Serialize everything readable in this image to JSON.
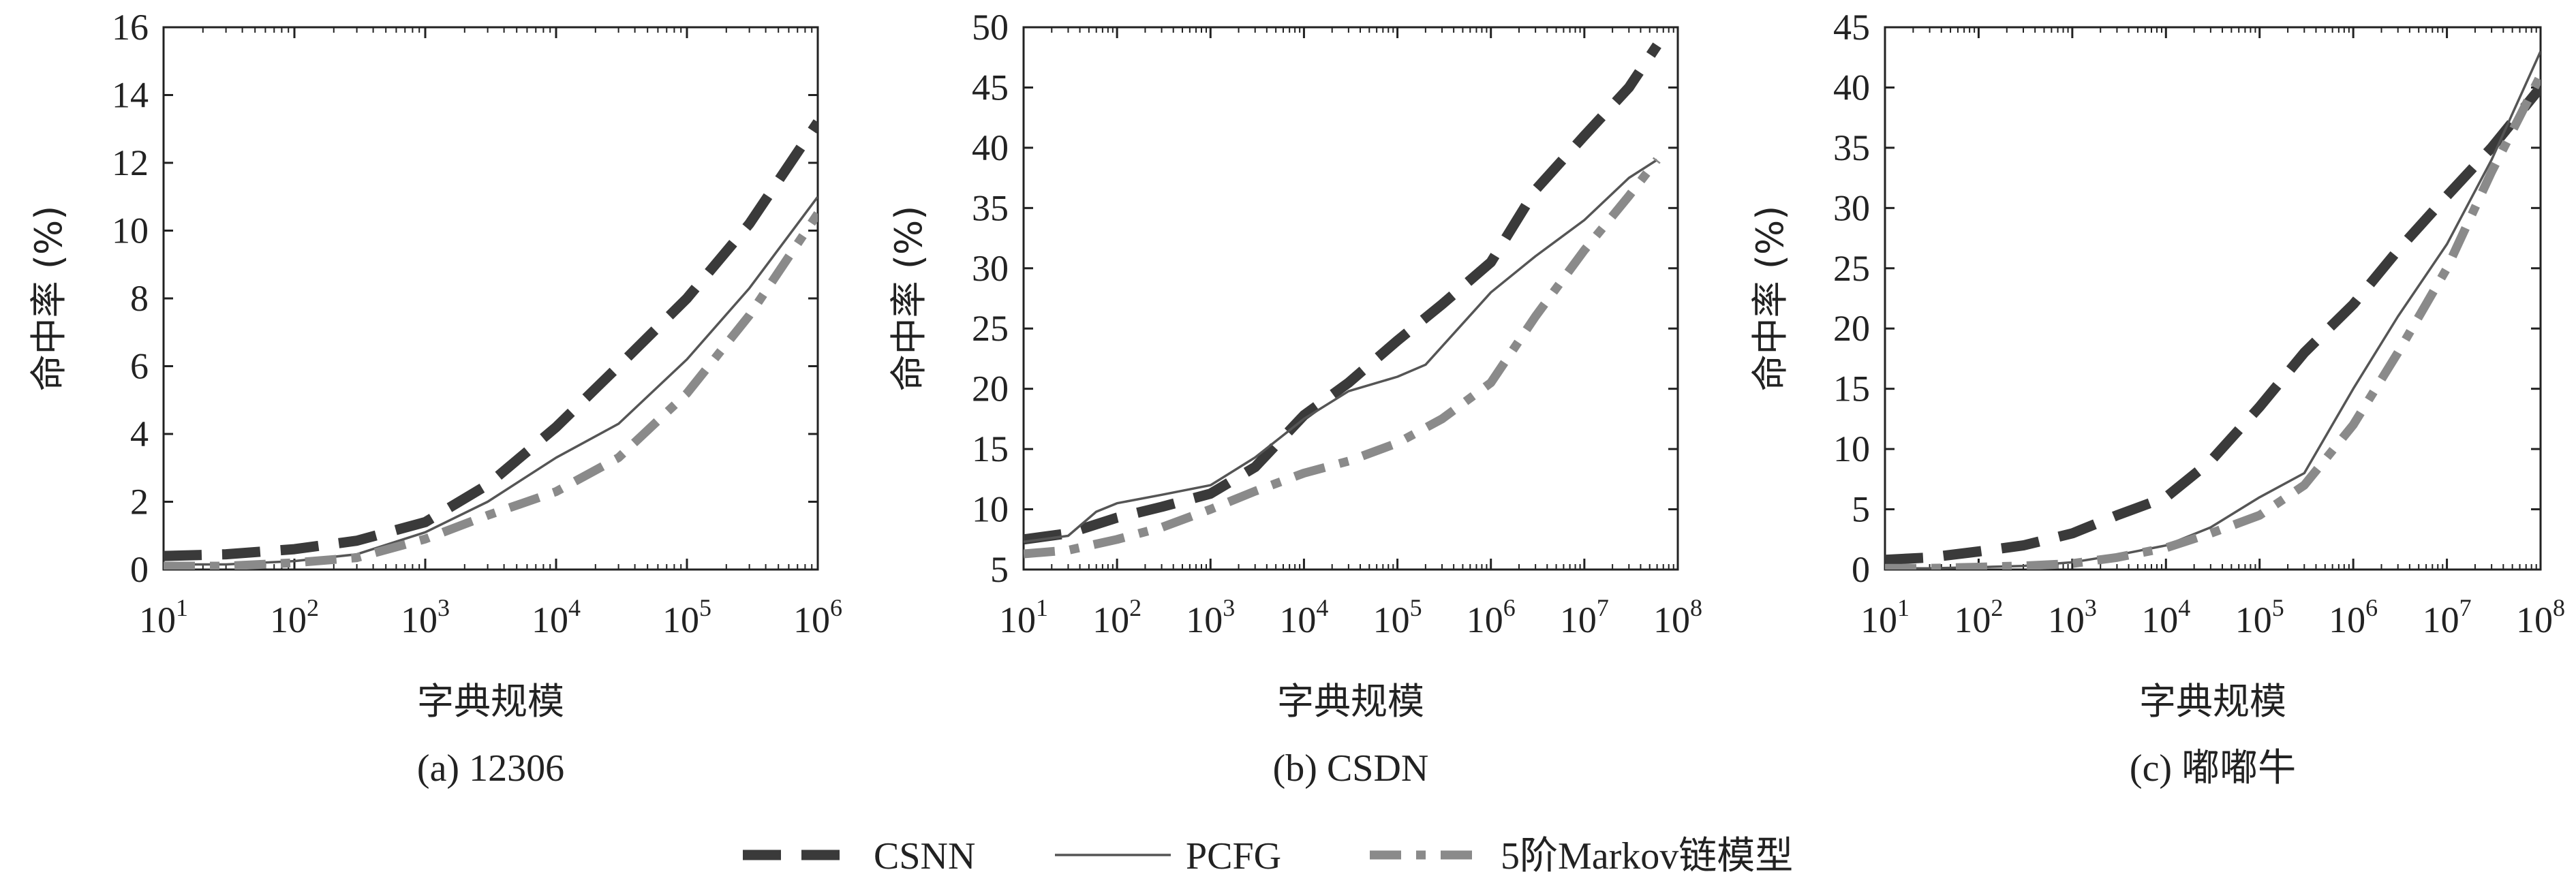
{
  "chart_data": [
    {
      "type": "line",
      "caption": "(a) 12306",
      "xlabel": "字典规模",
      "ylabel": "命中率 (%)",
      "xscale": "log",
      "xlim": [
        10,
        1000000
      ],
      "ylim": [
        0,
        16
      ],
      "xticks": [
        {
          "base": "10",
          "exp": "1"
        },
        {
          "base": "10",
          "exp": "2"
        },
        {
          "base": "10",
          "exp": "3"
        },
        {
          "base": "10",
          "exp": "4"
        },
        {
          "base": "10",
          "exp": "5"
        },
        {
          "base": "10",
          "exp": "6"
        }
      ],
      "yticks": [
        "0",
        "2",
        "4",
        "6",
        "8",
        "10",
        "12",
        "14",
        "16"
      ],
      "series": [
        {
          "name": "CSNN",
          "x": [
            10,
            30,
            100,
            300,
            1000,
            3000,
            10000,
            30000,
            100000,
            300000,
            1000000
          ],
          "y": [
            0.4,
            0.45,
            0.6,
            0.85,
            1.4,
            2.5,
            4.2,
            6.0,
            8.0,
            10.2,
            13.2
          ]
        },
        {
          "name": "PCFG",
          "x": [
            10,
            30,
            100,
            300,
            1000,
            3000,
            10000,
            30000,
            100000,
            300000,
            1000000
          ],
          "y": [
            0.15,
            0.15,
            0.25,
            0.45,
            1.1,
            2.0,
            3.3,
            4.3,
            6.2,
            8.3,
            11.0
          ]
        },
        {
          "name": "5阶Markov链模型",
          "x": [
            10,
            30,
            100,
            300,
            1000,
            3000,
            10000,
            30000,
            100000,
            300000,
            1000000
          ],
          "y": [
            0.1,
            0.1,
            0.2,
            0.35,
            0.9,
            1.6,
            2.3,
            3.3,
            5.2,
            7.5,
            10.5
          ]
        }
      ]
    },
    {
      "type": "line",
      "caption": "(b) CSDN",
      "xlabel": "字典规模",
      "ylabel": "命中率 (%)",
      "xscale": "log",
      "xlim": [
        10,
        100000000
      ],
      "ylim": [
        5,
        50
      ],
      "xticks": [
        {
          "base": "10",
          "exp": "1"
        },
        {
          "base": "10",
          "exp": "2"
        },
        {
          "base": "10",
          "exp": "3"
        },
        {
          "base": "10",
          "exp": "4"
        },
        {
          "base": "10",
          "exp": "5"
        },
        {
          "base": "10",
          "exp": "6"
        },
        {
          "base": "10",
          "exp": "7"
        },
        {
          "base": "10",
          "exp": "8"
        }
      ],
      "yticks": [
        "5",
        "10",
        "15",
        "20",
        "25",
        "30",
        "35",
        "40",
        "45",
        "50"
      ],
      "series": [
        {
          "name": "CSNN",
          "x": [
            10,
            30,
            100,
            300,
            1000,
            3000,
            10000,
            30000,
            100000,
            300000,
            1000000,
            3000000,
            10000000,
            30000000,
            60000000
          ],
          "y": [
            7.5,
            8.0,
            9.3,
            10.2,
            11.3,
            13.5,
            17.8,
            20.5,
            24.0,
            27.0,
            30.5,
            36.5,
            41.0,
            45.0,
            48.5
          ]
        },
        {
          "name": "PCFG",
          "x": [
            10,
            30,
            60,
            100,
            300,
            1000,
            3000,
            10000,
            30000,
            100000,
            200000,
            1000000,
            3000000,
            10000000,
            30000000,
            60000000
          ],
          "y": [
            7.3,
            7.8,
            9.8,
            10.5,
            11.2,
            12.0,
            14.3,
            17.5,
            19.8,
            21.0,
            22.0,
            28.0,
            31.0,
            34.0,
            37.5,
            39.0
          ]
        },
        {
          "name": "5阶Markov链模型",
          "x": [
            10,
            30,
            100,
            300,
            1000,
            3000,
            10000,
            30000,
            100000,
            300000,
            1000000,
            3000000,
            10000000,
            30000000,
            60000000
          ],
          "y": [
            6.3,
            6.6,
            7.5,
            8.5,
            10.0,
            11.5,
            13.0,
            14.0,
            15.5,
            17.5,
            20.5,
            26.0,
            31.5,
            36.0,
            39.0
          ]
        }
      ]
    },
    {
      "type": "line",
      "caption": "(c) 嘟嘟牛",
      "xlabel": "字典规模",
      "ylabel": "命中率 (%)",
      "xscale": "log",
      "xlim": [
        10,
        100000000
      ],
      "ylim": [
        0,
        45
      ],
      "xticks": [
        {
          "base": "10",
          "exp": "1"
        },
        {
          "base": "10",
          "exp": "2"
        },
        {
          "base": "10",
          "exp": "3"
        },
        {
          "base": "10",
          "exp": "4"
        },
        {
          "base": "10",
          "exp": "5"
        },
        {
          "base": "10",
          "exp": "6"
        },
        {
          "base": "10",
          "exp": "7"
        },
        {
          "base": "10",
          "exp": "8"
        }
      ],
      "yticks": [
        "0",
        "5",
        "10",
        "15",
        "20",
        "25",
        "30",
        "35",
        "40",
        "45"
      ],
      "series": [
        {
          "name": "CSNN",
          "x": [
            10,
            30,
            100,
            300,
            1000,
            3000,
            10000,
            30000,
            100000,
            300000,
            1000000,
            3000000,
            10000000,
            30000000,
            100000000
          ],
          "y": [
            0.8,
            1.0,
            1.5,
            2.0,
            3.0,
            4.5,
            6.0,
            9.0,
            13.5,
            18.0,
            22.0,
            26.5,
            31.0,
            35.0,
            40.0
          ]
        },
        {
          "name": "PCFG",
          "x": [
            10,
            30,
            100,
            300,
            1000,
            3000,
            10000,
            30000,
            100000,
            300000,
            1000000,
            3000000,
            10000000,
            30000000,
            100000000
          ],
          "y": [
            0.1,
            0.1,
            0.2,
            0.3,
            0.6,
            1.2,
            2.0,
            3.5,
            6.0,
            8.0,
            15.0,
            21.0,
            27.0,
            34.0,
            43.0
          ]
        },
        {
          "name": "5阶Markov链模型",
          "x": [
            10,
            30,
            100,
            300,
            1000,
            3000,
            10000,
            30000,
            100000,
            300000,
            1000000,
            3000000,
            10000000,
            30000000,
            100000000
          ],
          "y": [
            0.1,
            0.1,
            0.2,
            0.3,
            0.5,
            1.0,
            1.8,
            3.0,
            4.5,
            7.0,
            12.0,
            18.0,
            25.0,
            33.0,
            41.0
          ]
        }
      ]
    }
  ],
  "legend": {
    "placement": "bottom-center",
    "items": [
      {
        "label": "CSNN",
        "color": "#3a3a3a",
        "style": "long-dash"
      },
      {
        "label": "PCFG",
        "color": "#555555",
        "style": "solid"
      },
      {
        "label": "5阶Markov链模型",
        "color": "#8a8a8a",
        "style": "dash-dot"
      }
    ]
  },
  "styles": {
    "CSNN": {
      "color": "#3a3a3a",
      "style": "long-dash"
    },
    "PCFG": {
      "color": "#555555",
      "style": "solid"
    },
    "5阶Markov链模型": {
      "color": "#8a8a8a",
      "style": "dash-dot"
    }
  }
}
